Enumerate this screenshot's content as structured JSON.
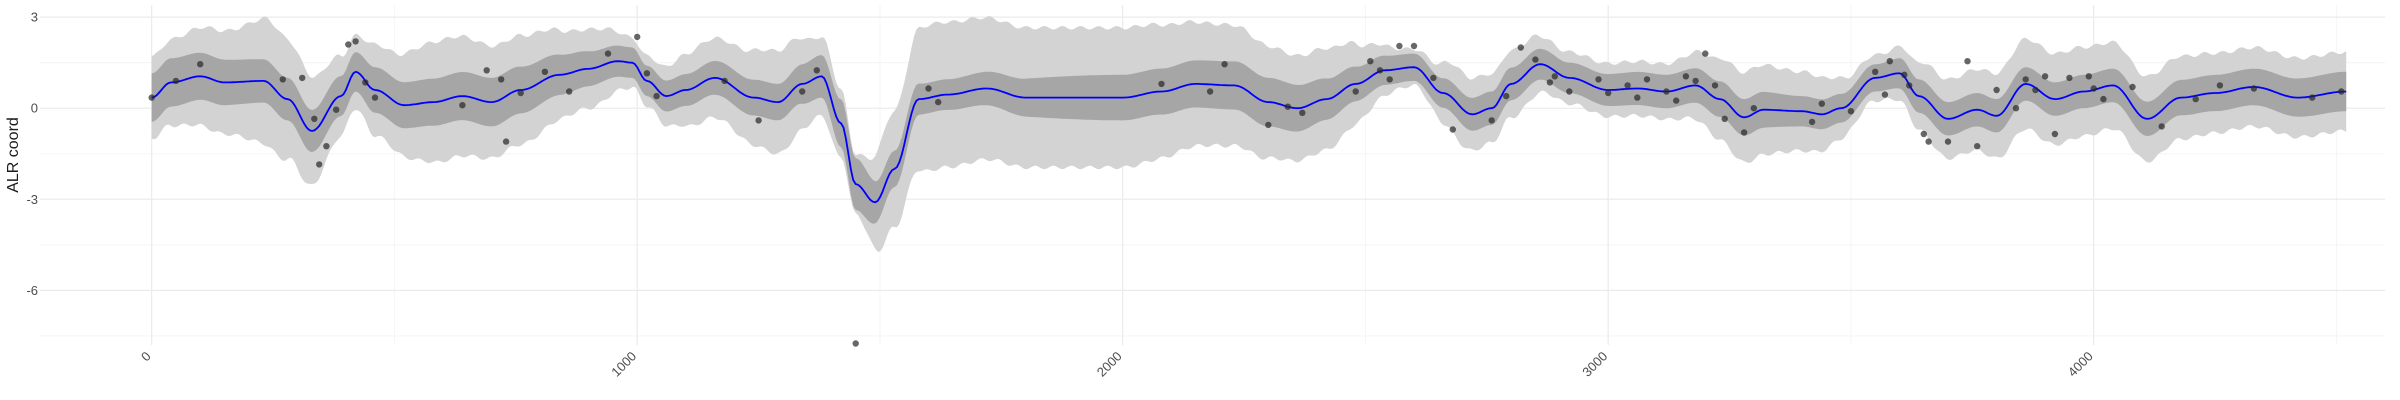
{
  "chart_data": {
    "type": "line",
    "title": "",
    "xlabel": "",
    "ylabel": "ALR coord",
    "xlim": [
      -230,
      4600
    ],
    "ylim": [
      -7.8,
      3.4
    ],
    "x_ticks": [
      0,
      1000,
      2000,
      3000,
      4000
    ],
    "x_tick_labels": [
      "0",
      "1000",
      "2000",
      "3000",
      "4000"
    ],
    "y_ticks": [
      3,
      0,
      -3,
      -6
    ],
    "y_tick_labels": [
      "3",
      "0",
      "-3",
      "-6"
    ],
    "grid": true,
    "legend": "none",
    "colors": {
      "mean_line": "#0000ff",
      "inner_band": "#a6a6a6",
      "outer_band": "#d3d3d3",
      "points": "#262626",
      "grid_major": "#ebebeb",
      "grid_minor": "#f5f5f5"
    },
    "series": [
      {
        "kind": "mean",
        "x": [
          0,
          40,
          100,
          150,
          230,
          280,
          330,
          390,
          420,
          460,
          520,
          580,
          640,
          700,
          760,
          840,
          900,
          960,
          990,
          1020,
          1060,
          1100,
          1160,
          1240,
          1290,
          1340,
          1380,
          1420,
          1450,
          1490,
          1530,
          1580,
          1640,
          1720,
          1800,
          1900,
          2000,
          2080,
          2150,
          2230,
          2300,
          2360,
          2420,
          2480,
          2540,
          2600,
          2660,
          2720,
          2760,
          2800,
          2860,
          2920,
          3000,
          3060,
          3120,
          3180,
          3230,
          3280,
          3320,
          3400,
          3440,
          3480,
          3550,
          3600,
          3640,
          3700,
          3760,
          3800,
          3860,
          3920,
          3980,
          4040,
          4110,
          4180,
          4250,
          4330,
          4420,
          4520
        ],
        "y": [
          0.35,
          0.85,
          1.05,
          0.85,
          0.9,
          0.3,
          -0.75,
          0.4,
          1.2,
          0.6,
          0.1,
          0.2,
          0.4,
          0.2,
          0.6,
          1.1,
          1.3,
          1.55,
          1.5,
          0.9,
          0.4,
          0.6,
          1.0,
          0.35,
          0.2,
          0.8,
          1.05,
          -0.5,
          -2.5,
          -3.1,
          -2.0,
          0.3,
          0.45,
          0.65,
          0.35,
          0.35,
          0.35,
          0.55,
          0.8,
          0.75,
          0.2,
          0.0,
          0.3,
          0.8,
          1.25,
          1.35,
          0.5,
          -0.2,
          0.0,
          0.8,
          1.45,
          1.0,
          0.6,
          0.65,
          0.55,
          0.75,
          0.3,
          -0.3,
          -0.05,
          -0.1,
          -0.2,
          0.0,
          1.0,
          1.15,
          0.4,
          -0.35,
          -0.05,
          -0.25,
          0.8,
          0.3,
          0.55,
          0.75,
          -0.35,
          0.35,
          0.5,
          0.7,
          0.35,
          0.55
        ]
      },
      {
        "kind": "inner_band_halfwidth",
        "x": [
          0,
          300,
          420,
          460,
          700,
          1000,
          1300,
          1380,
          1450,
          1520,
          1600,
          2000,
          2300,
          2600,
          2750,
          2900,
          3100,
          3300,
          3400,
          3550,
          3650,
          4000,
          4300,
          4520
        ],
        "y": [
          0.8,
          0.7,
          0.65,
          0.75,
          0.8,
          0.5,
          0.6,
          0.7,
          0.85,
          0.6,
          0.5,
          0.75,
          0.8,
          0.45,
          0.55,
          0.5,
          0.55,
          0.6,
          0.5,
          0.45,
          0.55,
          0.55,
          0.6,
          0.65
        ]
      },
      {
        "kind": "outer_band_halfwidth",
        "x": [
          0,
          150,
          250,
          300,
          420,
          460,
          600,
          750,
          900,
          1000,
          1150,
          1300,
          1380,
          1450,
          1520,
          1600,
          1800,
          2000,
          2200,
          2400,
          2600,
          2700,
          2800,
          2900,
          3100,
          3300,
          3400,
          3550,
          3700,
          3900,
          4100,
          4300,
          4520
        ],
        "y": [
          1.35,
          1.7,
          2.1,
          1.9,
          1.2,
          1.5,
          2.0,
          1.8,
          1.3,
          0.8,
          1.3,
          1.7,
          1.3,
          1.0,
          1.9,
          2.4,
          2.3,
          2.3,
          2.0,
          1.7,
          0.6,
          1.2,
          1.1,
          0.85,
          0.9,
          1.5,
          1.3,
          0.75,
          1.3,
          1.5,
          1.4,
          1.3,
          1.3
        ]
      }
    ],
    "points": {
      "x": [
        0,
        50,
        100,
        270,
        310,
        335,
        345,
        360,
        380,
        405,
        420,
        440,
        460,
        640,
        690,
        720,
        730,
        760,
        810,
        860,
        940,
        1000,
        1020,
        1040,
        1180,
        1250,
        1340,
        1370,
        1450,
        1600,
        1620,
        2080,
        2180,
        2210,
        2300,
        2340,
        2370,
        2480,
        2510,
        2530,
        2550,
        2570,
        2600,
        2640,
        2680,
        2760,
        2790,
        2820,
        2850,
        2880,
        2890,
        2920,
        2980,
        3000,
        3040,
        3060,
        3080,
        3120,
        3140,
        3160,
        3180,
        3200,
        3220,
        3240,
        3280,
        3300,
        3420,
        3440,
        3500,
        3550,
        3570,
        3580,
        3610,
        3620,
        3650,
        3660,
        3700,
        3740,
        3760,
        3800,
        3840,
        3860,
        3880,
        3900,
        3920,
        3950,
        3990,
        4000,
        4020,
        4080,
        4140,
        4210,
        4260,
        4330,
        4450,
        4510
      ],
      "y": [
        0.35,
        0.9,
        1.45,
        0.95,
        1.0,
        -0.35,
        -1.85,
        -1.25,
        -0.05,
        2.1,
        2.2,
        0.85,
        0.35,
        0.1,
        1.25,
        0.95,
        -1.1,
        0.5,
        1.2,
        0.55,
        1.8,
        2.35,
        1.15,
        0.4,
        0.9,
        -0.4,
        0.55,
        1.25,
        -7.75,
        0.65,
        0.2,
        0.8,
        0.55,
        1.45,
        -0.55,
        0.05,
        -0.15,
        0.55,
        1.55,
        1.25,
        0.95,
        2.05,
        2.05,
        1.0,
        -0.7,
        -0.4,
        0.4,
        2.0,
        1.6,
        0.85,
        1.05,
        0.55,
        0.95,
        0.5,
        0.75,
        0.35,
        0.95,
        0.55,
        0.25,
        1.05,
        0.9,
        1.8,
        0.75,
        -0.35,
        -0.8,
        0.0,
        -0.45,
        0.15,
        -0.1,
        1.2,
        0.45,
        1.55,
        1.1,
        0.75,
        -0.85,
        -1.1,
        -1.1,
        1.55,
        -1.25,
        0.6,
        0.0,
        0.95,
        0.6,
        1.05,
        -0.85,
        1.0,
        1.05,
        0.65,
        0.3,
        0.7,
        -0.6,
        0.3,
        0.75,
        0.65,
        0.35,
        0.55
      ]
    }
  }
}
